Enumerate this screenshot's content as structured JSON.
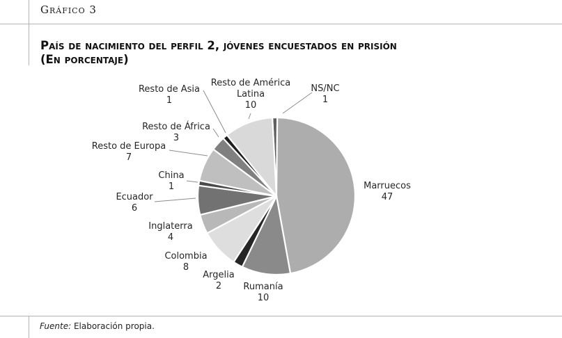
{
  "figure": {
    "label": "Gráfico 3"
  },
  "chart_data": {
    "type": "pie",
    "title_line1": "País de nacimiento del perfil 2, jóvenes encuestados en prisión",
    "title_line2": "(En porcentaje)",
    "slices": [
      {
        "label": [
          "NS/NC"
        ],
        "value": 1,
        "color": "#5f5f5f"
      },
      {
        "label": [
          "Marruecos"
        ],
        "value": 47,
        "color": "#adadad"
      },
      {
        "label": [
          "Rumanía"
        ],
        "value": 10,
        "color": "#8a8a8a"
      },
      {
        "label": [
          "Argelia"
        ],
        "value": 2,
        "color": "#262626"
      },
      {
        "label": [
          "Colombia"
        ],
        "value": 8,
        "color": "#dedede"
      },
      {
        "label": [
          "Inglaterra"
        ],
        "value": 4,
        "color": "#b8b8b8"
      },
      {
        "label": [
          "Ecuador"
        ],
        "value": 6,
        "color": "#727272"
      },
      {
        "label": [
          "China"
        ],
        "value": 1,
        "color": "#4a4a4a"
      },
      {
        "label": [
          "Resto de Europa"
        ],
        "value": 7,
        "color": "#bfbfbf"
      },
      {
        "label": [
          "Resto de África"
        ],
        "value": 3,
        "color": "#808080"
      },
      {
        "label": [
          "Resto de Asia"
        ],
        "value": 1,
        "color": "#1f1f1f"
      },
      {
        "label": [
          "Resto de América",
          "Latina"
        ],
        "value": 10,
        "color": "#d9d9d9"
      }
    ]
  },
  "source": {
    "prefix": "Fuente:",
    "text": " Elaboración propia."
  }
}
